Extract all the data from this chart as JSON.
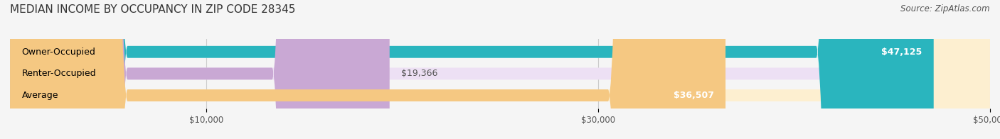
{
  "title": "MEDIAN INCOME BY OCCUPANCY IN ZIP CODE 28345",
  "source": "Source: ZipAtlas.com",
  "categories": [
    "Owner-Occupied",
    "Renter-Occupied",
    "Average"
  ],
  "values": [
    47125,
    19366,
    36507
  ],
  "bar_colors": [
    "#2ab5be",
    "#c9a8d4",
    "#f5c882"
  ],
  "bar_bg_colors": [
    "#d6f2f4",
    "#ede0f4",
    "#fdefd0"
  ],
  "value_labels": [
    "$47,125",
    "$19,366",
    "$36,507"
  ],
  "xlim": [
    0,
    50000
  ],
  "xtick_values": [
    10000,
    30000,
    50000
  ],
  "xtick_labels": [
    "$10,000",
    "$30,000",
    "$50,000"
  ],
  "title_fontsize": 11,
  "source_fontsize": 8.5,
  "label_fontsize": 9,
  "bar_height": 0.55,
  "background_color": "#f5f5f5"
}
